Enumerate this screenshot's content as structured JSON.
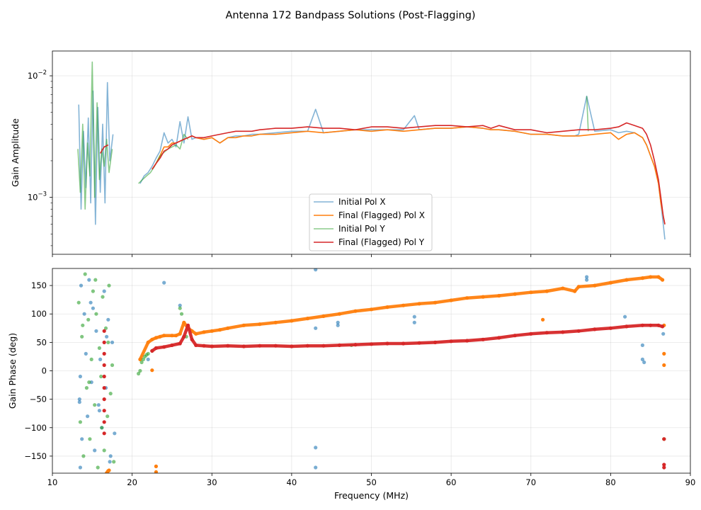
{
  "figure_title": "Antenna 172 Bandpass Solutions (Post-Flagging)",
  "chart_data": [
    {
      "type": "line",
      "panel": "amplitude",
      "title": "Antenna 172 Bandpass Solutions (Post-Flagging)",
      "xlabel": "Frequency (MHz)",
      "ylabel": "Gain Amplitude",
      "yscale": "log",
      "xlim": [
        10,
        90
      ],
      "ylim": [
        0.00034,
        0.016
      ],
      "yticks": [
        {
          "value": 0.01,
          "base": "10",
          "exp": "−2"
        },
        {
          "value": 0.001,
          "base": "10",
          "exp": "−3"
        }
      ],
      "grid": true,
      "legend_location": "lower-center",
      "series": [
        {
          "name": "Initial Pol X",
          "color": "#1f77b4",
          "alpha": 0.55,
          "x": [
            13.3,
            13.6,
            13.9,
            14.2,
            14.5,
            14.8,
            15.1,
            15.4,
            15.7,
            16.0,
            16.3,
            16.6,
            16.9,
            17.2,
            17.6,
            21.0,
            21.5,
            22.0,
            22.5,
            23.0,
            23.5,
            24.0,
            24.5,
            25.0,
            25.5,
            26.0,
            26.5,
            27.0,
            27.5,
            28.0,
            29.0,
            30.0,
            31.0,
            32.0,
            33.0,
            34.0,
            35.0,
            36.0,
            38.0,
            40.0,
            42.0,
            43.0,
            44.0,
            46.0,
            48.0,
            50.0,
            52.0,
            54.0,
            55.4,
            56.0,
            58.0,
            60.0,
            62.0,
            64.0,
            65.0,
            66.0,
            68.0,
            70.0,
            72.0,
            74.0,
            75.5,
            76.0,
            77.0,
            78.0,
            80.0,
            81.0,
            82.0,
            83.0,
            84.0,
            84.5,
            85.0,
            85.5,
            86.0,
            86.3,
            86.6,
            86.8
          ],
          "y": [
            0.0058,
            0.0008,
            0.0035,
            0.0012,
            0.0045,
            0.0009,
            0.0075,
            0.0006,
            0.0055,
            0.0011,
            0.004,
            0.0009,
            0.0088,
            0.002,
            0.0033,
            0.0013,
            0.0015,
            0.0016,
            0.0018,
            0.0021,
            0.0024,
            0.0034,
            0.0028,
            0.003,
            0.0026,
            0.0042,
            0.0028,
            0.0046,
            0.003,
            0.0031,
            0.003,
            0.0031,
            0.0028,
            0.0031,
            0.0032,
            0.0032,
            0.0033,
            0.0033,
            0.0034,
            0.0035,
            0.0035,
            0.0053,
            0.0034,
            0.0035,
            0.0036,
            0.0036,
            0.0036,
            0.0036,
            0.0047,
            0.0036,
            0.0037,
            0.0037,
            0.0038,
            0.0037,
            0.0036,
            0.0036,
            0.0035,
            0.0033,
            0.0033,
            0.0032,
            0.0032,
            0.0033,
            0.0068,
            0.0035,
            0.0036,
            0.0034,
            0.0035,
            0.0034,
            0.0031,
            0.0027,
            0.0022,
            0.0018,
            0.0013,
            0.0009,
            0.0006,
            0.00045
          ]
        },
        {
          "name": "Final (Flagged) Pol X",
          "color": "#ff7f0e",
          "alpha": 1.0,
          "x": [
            22.5,
            23.0,
            23.5,
            24.0,
            24.5,
            25.0,
            25.5,
            26.0,
            26.5,
            27.0,
            27.5,
            28.0,
            29.0,
            30.0,
            31.0,
            32.0,
            33.0,
            34.0,
            35.0,
            36.0,
            38.0,
            40.0,
            42.0,
            44.0,
            46.0,
            48.0,
            50.0,
            52.0,
            54.0,
            56.0,
            58.0,
            60.0,
            62.0,
            64.0,
            65.0,
            66.0,
            68.0,
            70.0,
            72.0,
            74.0,
            76.0,
            78.0,
            80.0,
            81.0,
            82.0,
            83.0,
            84.0,
            84.5,
            85.0,
            85.5,
            86.0,
            86.3,
            86.6,
            86.8
          ],
          "y": [
            0.0017,
            0.0019,
            0.0022,
            0.0026,
            0.0026,
            0.0028,
            0.0028,
            0.0029,
            0.003,
            0.0031,
            0.0032,
            0.0031,
            0.003,
            0.0031,
            0.0028,
            0.0031,
            0.0031,
            0.0032,
            0.0032,
            0.0033,
            0.0033,
            0.0034,
            0.0035,
            0.0034,
            0.0035,
            0.0036,
            0.0035,
            0.0036,
            0.0035,
            0.0036,
            0.0037,
            0.0037,
            0.0038,
            0.0037,
            0.0036,
            0.0036,
            0.0035,
            0.0033,
            0.0033,
            0.0032,
            0.0032,
            0.0033,
            0.0034,
            0.003,
            0.0033,
            0.0034,
            0.0031,
            0.0027,
            0.0022,
            0.0018,
            0.0013,
            0.0009,
            0.0007,
            0.0006
          ]
        },
        {
          "name": "Initial Pol Y",
          "color": "#2ca02c",
          "alpha": 0.55,
          "x": [
            13.2,
            13.5,
            13.8,
            14.1,
            14.4,
            14.7,
            15.0,
            15.3,
            15.6,
            15.9,
            16.2,
            16.5,
            16.8,
            17.1,
            17.5,
            20.8,
            21.3,
            21.8,
            22.3,
            22.8,
            23.5,
            24.5,
            25.5,
            26.0,
            26.5,
            27.0,
            77.0,
            77.2
          ],
          "y": [
            0.0025,
            0.0011,
            0.004,
            0.0008,
            0.0028,
            0.0015,
            0.013,
            0.001,
            0.006,
            0.0014,
            0.0025,
            0.0018,
            0.003,
            0.0016,
            0.0025,
            0.0013,
            0.0014,
            0.0015,
            0.0016,
            0.0018,
            0.0022,
            0.0025,
            0.0027,
            0.0025,
            0.0033,
            0.003,
            0.0068,
            0.0035
          ]
        },
        {
          "name": "Final (Flagged) Pol Y",
          "color": "#d62728",
          "alpha": 1.0,
          "x": [
            16.0,
            16.5,
            17.0,
            22.5,
            23.0,
            23.5,
            24.0,
            24.5,
            25.0,
            25.5,
            26.0,
            26.5,
            27.0,
            27.5,
            28.0,
            29.0,
            30.0,
            31.0,
            32.0,
            33.0,
            34.0,
            35.0,
            36.0,
            38.0,
            40.0,
            42.0,
            44.0,
            46.0,
            48.0,
            50.0,
            52.0,
            54.0,
            56.0,
            58.0,
            60.0,
            62.0,
            64.0,
            65.0,
            66.0,
            68.0,
            70.0,
            72.0,
            74.0,
            76.0,
            78.0,
            80.0,
            81.0,
            82.0,
            83.0,
            84.0,
            84.5,
            85.0,
            85.5,
            86.0,
            86.3,
            86.6,
            86.8
          ],
          "y": [
            0.0023,
            0.0026,
            0.0027,
            0.0017,
            0.0019,
            0.0021,
            0.0024,
            0.0025,
            0.0027,
            0.0028,
            0.0029,
            0.003,
            0.0031,
            0.0032,
            0.0031,
            0.0031,
            0.0032,
            0.0033,
            0.0034,
            0.0035,
            0.0035,
            0.0035,
            0.0036,
            0.0037,
            0.0037,
            0.0038,
            0.0037,
            0.0037,
            0.0036,
            0.0038,
            0.0038,
            0.0037,
            0.0038,
            0.0039,
            0.0039,
            0.0038,
            0.0039,
            0.0037,
            0.0039,
            0.0036,
            0.0036,
            0.0034,
            0.0035,
            0.0036,
            0.0036,
            0.0037,
            0.0038,
            0.0041,
            0.0039,
            0.0037,
            0.0033,
            0.0027,
            0.002,
            0.0014,
            0.001,
            0.0007,
            0.0006
          ]
        }
      ]
    },
    {
      "type": "scatter",
      "panel": "phase",
      "xlabel": "Frequency (MHz)",
      "ylabel": "Gain Phase (deg)",
      "xlim": [
        10,
        90
      ],
      "ylim": [
        -180,
        180
      ],
      "xticks": [
        10,
        20,
        30,
        40,
        50,
        60,
        70,
        80,
        90
      ],
      "yticks": [
        -150,
        -100,
        -50,
        0,
        50,
        100,
        150
      ],
      "grid": true,
      "series": [
        {
          "name": "Initial Pol X",
          "color": "#1f77b4",
          "alpha": 0.6,
          "x": [
            13.4,
            13.4,
            13.5,
            13.6,
            13.7,
            14.0,
            14.2,
            14.4,
            14.6,
            14.9,
            15.1,
            15.3,
            15.5,
            15.8,
            16.0,
            16.2,
            16.5,
            16.7,
            17.0,
            17.2,
            17.5,
            17.8,
            13.5,
            14.8,
            15.9,
            16.8,
            17.3,
            22.0,
            24.0,
            26.0,
            26.5,
            43.0,
            43.0,
            43.0,
            43.0,
            45.8,
            45.8,
            55.4,
            55.4,
            77.0,
            77.0,
            81.8,
            84.0,
            84.0,
            84.2,
            86.6
          ],
          "y": [
            -50,
            -55,
            -170,
            150,
            -120,
            100,
            30,
            -80,
            160,
            -20,
            110,
            -140,
            70,
            -60,
            20,
            -100,
            140,
            -30,
            90,
            -160,
            50,
            -110,
            -10,
            120,
            -70,
            60,
            -150,
            20,
            155,
            115,
            60,
            -135,
            -170,
            178,
            75,
            85,
            80,
            85,
            95,
            165,
            160,
            95,
            20,
            45,
            15,
            65
          ]
        },
        {
          "name": "Final (Flagged) Pol X",
          "color": "#ff7f0e",
          "alpha": 1.0,
          "x": [
            16.8,
            16.9,
            17.0,
            17.1,
            21.0,
            22.0,
            22.5,
            23.0,
            23.5,
            24.0,
            25.0,
            25.5,
            26.0,
            26.5,
            27.0,
            27.5,
            28.0,
            29.0,
            30.0,
            31.0,
            32.0,
            34.0,
            36.0,
            38.0,
            40.0,
            42.0,
            44.0,
            46.0,
            48.0,
            50.0,
            52.0,
            54.0,
            56.0,
            58.0,
            60.0,
            62.0,
            64.0,
            66.0,
            68.0,
            70.0,
            72.0,
            74.0,
            75.5,
            76.0,
            78.0,
            80.0,
            82.0,
            84.0,
            85.0,
            86.0,
            86.5,
            86.7,
            22.5,
            23.0,
            23.0,
            71.5,
            86.7,
            86.7,
            86.7
          ],
          "y": [
            -180,
            -178,
            -176,
            -175,
            20,
            50,
            55,
            58,
            60,
            62,
            62,
            62,
            65,
            85,
            75,
            70,
            65,
            68,
            70,
            72,
            75,
            80,
            82,
            85,
            88,
            92,
            96,
            100,
            105,
            108,
            112,
            115,
            118,
            120,
            124,
            128,
            130,
            132,
            135,
            138,
            140,
            145,
            140,
            148,
            150,
            155,
            160,
            163,
            165,
            165,
            160,
            80,
            1,
            -168,
            -178,
            90,
            30,
            10,
            -120
          ]
        },
        {
          "name": "Initial Pol Y",
          "color": "#2ca02c",
          "alpha": 0.6,
          "x": [
            13.3,
            13.5,
            13.7,
            13.9,
            14.1,
            14.3,
            14.5,
            14.7,
            14.9,
            15.1,
            15.3,
            15.5,
            15.7,
            15.9,
            16.1,
            16.3,
            16.5,
            16.7,
            16.9,
            17.1,
            17.3,
            17.5,
            17.7,
            13.8,
            14.6,
            15.4,
            16.2,
            17.0,
            20.8,
            21.0,
            21.2,
            21.4,
            21.6,
            21.8,
            22.0,
            22.5,
            26.0,
            26.2,
            26.8,
            47.5,
            86.7
          ],
          "y": [
            120,
            -90,
            60,
            -150,
            170,
            -30,
            90,
            -120,
            20,
            140,
            -60,
            100,
            -170,
            40,
            -10,
            130,
            -140,
            75,
            -80,
            150,
            -40,
            10,
            -160,
            80,
            -20,
            160,
            -100,
            50,
            -5,
            0,
            15,
            20,
            25,
            28,
            30,
            35,
            110,
            100,
            60,
            45,
            -120
          ]
        },
        {
          "name": "Final (Flagged) Pol Y",
          "color": "#d62728",
          "alpha": 1.0,
          "x": [
            16.5,
            16.5,
            16.5,
            16.5,
            16.5,
            16.5,
            16.5,
            16.5,
            16.5,
            16.5,
            22.5,
            23.0,
            24.0,
            25.0,
            26.0,
            26.5,
            27.0,
            27.5,
            28.0,
            29.0,
            30.0,
            32.0,
            34.0,
            36.0,
            38.0,
            40.0,
            42.0,
            44.0,
            46.0,
            48.0,
            50.0,
            52.0,
            54.0,
            56.0,
            58.0,
            60.0,
            62.0,
            64.0,
            66.0,
            68.0,
            70.0,
            72.0,
            74.0,
            76.0,
            78.0,
            80.0,
            82.0,
            84.0,
            85.0,
            86.0,
            86.5,
            86.7,
            86.7,
            86.7
          ],
          "y": [
            70,
            50,
            30,
            10,
            -10,
            -30,
            -50,
            -70,
            -90,
            -110,
            35,
            40,
            42,
            45,
            48,
            60,
            80,
            55,
            45,
            44,
            43,
            44,
            43,
            44,
            44,
            43,
            44,
            44,
            45,
            46,
            47,
            48,
            48,
            49,
            50,
            52,
            53,
            55,
            58,
            62,
            65,
            67,
            68,
            70,
            73,
            75,
            78,
            80,
            80,
            80,
            78,
            -120,
            -165,
            -170
          ]
        }
      ]
    }
  ]
}
